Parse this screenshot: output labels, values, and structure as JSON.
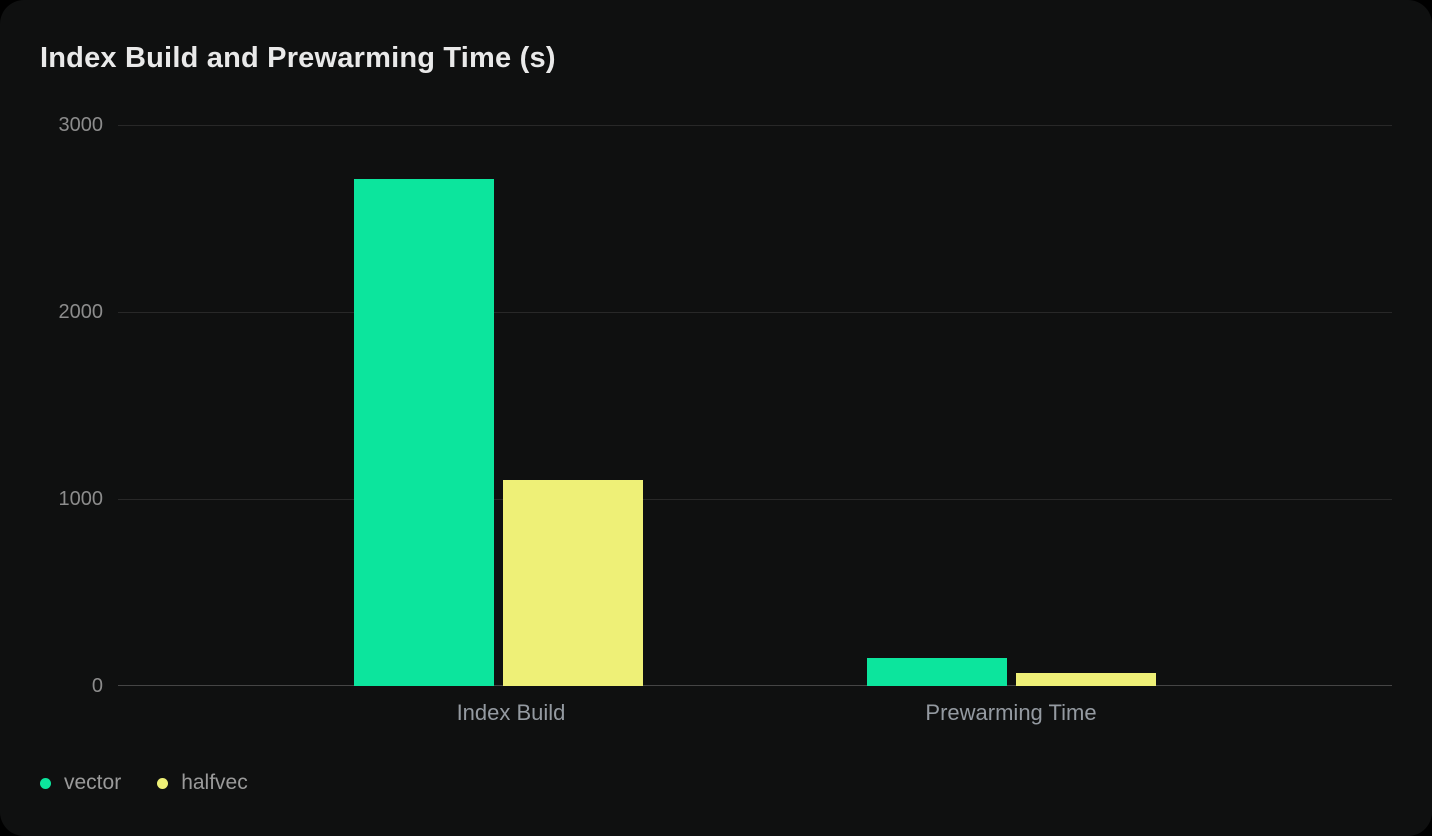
{
  "chart_data": {
    "type": "bar",
    "title": "Index Build and Prewarming Time (s)",
    "categories": [
      "Index Build",
      "Prewarming Time"
    ],
    "series": [
      {
        "name": "vector",
        "color": "#0ce59d",
        "values": [
          2710,
          150
        ]
      },
      {
        "name": "halfvec",
        "color": "#eef077",
        "values": [
          1100,
          70
        ]
      }
    ],
    "xlabel": "",
    "ylabel": "",
    "ylim": [
      0,
      3000
    ],
    "yticks": [
      "3000",
      "2000",
      "1000",
      "0"
    ],
    "grid": true,
    "legend_position": "bottom-left",
    "colors": {
      "card_background": "#0f1010",
      "page_background": "#000000",
      "gridline": "#282828",
      "zero_line": "#454545",
      "title_text": "#e9e9e9",
      "axis_text": "#8c8c8c",
      "category_text": "#949aa1",
      "legend_text": "#9a9a9a"
    }
  }
}
